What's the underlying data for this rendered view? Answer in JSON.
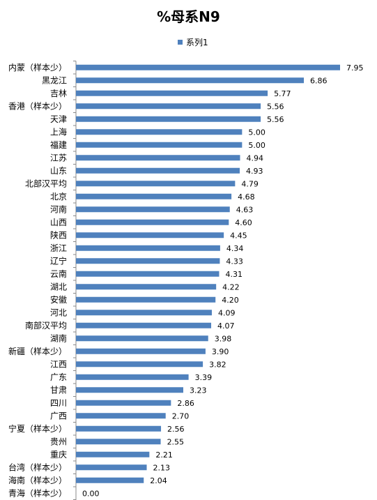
{
  "colors": {
    "bar": "#4f81bd",
    "axis": "#888888",
    "text": "#000000"
  },
  "chart_data": {
    "type": "bar",
    "orientation": "horizontal",
    "title": "%母系N9",
    "legend": {
      "position": "top-center"
    },
    "xlim": [
      0,
      8.4
    ],
    "grid": false,
    "categories": [
      "内蒙（样本少）",
      "黑龙江",
      "吉林",
      "香港（样本少）",
      "天津",
      "上海",
      "福建",
      "江苏",
      "山东",
      "北部汉平均",
      "北京",
      "河南",
      "山西",
      "陕西",
      "浙江",
      "辽宁",
      "云南",
      "湖北",
      "安徽",
      "河北",
      "南部汉平均",
      "湖南",
      "新疆（样本少）",
      "江西",
      "广东",
      "甘肃",
      "四川",
      "广西",
      "宁夏（样本少）",
      "贵州",
      "重庆",
      "台湾（样本少）",
      "海南（样本少）",
      "青海（样本少）"
    ],
    "series": [
      {
        "name": "系列1",
        "values": [
          7.95,
          6.86,
          5.77,
          5.56,
          5.56,
          5.0,
          5.0,
          4.94,
          4.93,
          4.79,
          4.68,
          4.63,
          4.6,
          4.45,
          4.34,
          4.33,
          4.31,
          4.22,
          4.2,
          4.09,
          4.07,
          3.98,
          3.9,
          3.82,
          3.39,
          3.23,
          2.86,
          2.7,
          2.56,
          2.55,
          2.21,
          2.13,
          2.04,
          0.0
        ],
        "labels": [
          "7.95",
          "6.86",
          "5.77",
          "5.56",
          "5.56",
          "5.00",
          "5.00",
          "4.94",
          "4.93",
          "4.79",
          "4.68",
          "4.63",
          "4.60",
          "4.45",
          "4.34",
          "4.33",
          "4.31",
          "4.22",
          "4.20",
          "4.09",
          "4.07",
          "3.98",
          "3.90",
          "3.82",
          "3.39",
          "3.23",
          "2.86",
          "2.70",
          "2.56",
          "2.55",
          "2.21",
          "2.13",
          "2.04",
          "0.00"
        ]
      }
    ]
  }
}
